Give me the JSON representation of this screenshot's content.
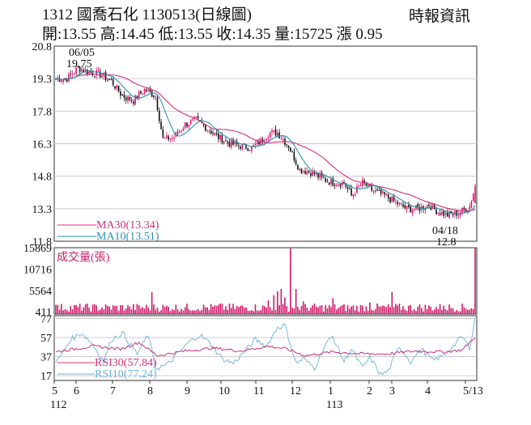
{
  "header": {
    "title": "1312  國喬石化 1130513(日線圖)",
    "source": "時報資訊",
    "ohlc": "開:13.55 高:14.45 低:13.55 收:14.35 量:15725 漲 0.95"
  },
  "colors": {
    "up": "#e0106a",
    "down": "#111111",
    "ma30": "#d0307a",
    "ma10": "#2a8fb0",
    "rsi30": "#d0307a",
    "rsi10": "#6fb0d8",
    "volume": "#d01a6a",
    "grid": "#cccccc"
  },
  "chart_data": [
    {
      "type": "candlestick",
      "name": "price",
      "y_ticks": [
        "20.8",
        "19.3",
        "17.8",
        "16.3",
        "14.8",
        "13.3",
        "11.8"
      ],
      "ylim": [
        11.8,
        20.8
      ],
      "annotations": [
        {
          "text": "06/05",
          "subtext": "19.75",
          "value": 19.75
        },
        {
          "text": "04/18",
          "subtext": "12.8",
          "value": 12.8
        }
      ],
      "legend": [
        {
          "label": "MA30(13.34)",
          "color": "#d0307a"
        },
        {
          "label": "MA10(13.51)",
          "color": "#2a8fb0"
        }
      ],
      "anchors": [
        [
          0,
          19.3
        ],
        [
          6,
          19.3
        ],
        [
          12,
          19.8
        ],
        [
          18,
          19.6
        ],
        [
          24,
          19.5
        ],
        [
          30,
          19.2
        ],
        [
          36,
          18.5
        ],
        [
          42,
          18.3
        ],
        [
          48,
          18.8
        ],
        [
          54,
          18.5
        ],
        [
          58,
          16.5
        ],
        [
          64,
          16.6
        ],
        [
          70,
          17.2
        ],
        [
          76,
          17.4
        ],
        [
          82,
          17.0
        ],
        [
          88,
          16.6
        ],
        [
          94,
          16.3
        ],
        [
          100,
          16.2
        ],
        [
          106,
          16.1
        ],
        [
          112,
          16.5
        ],
        [
          116,
          16.8
        ],
        [
          120,
          16.8
        ],
        [
          126,
          16.2
        ],
        [
          132,
          15.1
        ],
        [
          138,
          15.0
        ],
        [
          144,
          14.7
        ],
        [
          150,
          14.5
        ],
        [
          156,
          14.5
        ],
        [
          160,
          13.9
        ],
        [
          166,
          14.5
        ],
        [
          172,
          14.1
        ],
        [
          178,
          13.9
        ],
        [
          184,
          13.6
        ],
        [
          190,
          13.3
        ],
        [
          196,
          13.3
        ],
        [
          202,
          13.5
        ],
        [
          206,
          13.2
        ],
        [
          212,
          13.0
        ],
        [
          218,
          13.1
        ],
        [
          224,
          13.4
        ],
        [
          227,
          14.35
        ]
      ]
    },
    {
      "type": "bar",
      "name": "volume",
      "title": "成交量(張)",
      "y_ticks": [
        "15869",
        "10716",
        "5564",
        "411"
      ],
      "ylim": [
        0,
        15869
      ],
      "spikes": [
        [
          0,
          2200
        ],
        [
          40,
          1800
        ],
        [
          52,
          5200
        ],
        [
          90,
          2500
        ],
        [
          115,
          3300
        ],
        [
          118,
          4500
        ],
        [
          120,
          5500
        ],
        [
          122,
          6000
        ],
        [
          124,
          4000
        ],
        [
          127,
          15725
        ],
        [
          130,
          6000
        ],
        [
          134,
          3000
        ],
        [
          150,
          3800
        ],
        [
          170,
          2800
        ],
        [
          182,
          5300
        ],
        [
          210,
          2000
        ],
        [
          227,
          15725
        ]
      ],
      "base": 1500
    },
    {
      "type": "line",
      "name": "rsi",
      "y_ticks": [
        "77",
        "57",
        "37",
        "17"
      ],
      "ylim": [
        12,
        80
      ],
      "legend": [
        {
          "label": "RSI30(57.84)",
          "color": "#d0307a"
        },
        {
          "label": "RSI10(77.24)",
          "color": "#6fb0d8"
        }
      ],
      "rsi30_anchors": [
        [
          0,
          42
        ],
        [
          20,
          48
        ],
        [
          35,
          45
        ],
        [
          45,
          52
        ],
        [
          55,
          38
        ],
        [
          70,
          43
        ],
        [
          85,
          46
        ],
        [
          100,
          43
        ],
        [
          115,
          48
        ],
        [
          125,
          45
        ],
        [
          135,
          38
        ],
        [
          150,
          42
        ],
        [
          165,
          40
        ],
        [
          180,
          40
        ],
        [
          195,
          43
        ],
        [
          210,
          42
        ],
        [
          220,
          44
        ],
        [
          227,
          57.84
        ]
      ],
      "rsi10_anchors": [
        [
          0,
          30
        ],
        [
          8,
          55
        ],
        [
          14,
          62
        ],
        [
          20,
          50
        ],
        [
          26,
          32
        ],
        [
          30,
          55
        ],
        [
          36,
          62
        ],
        [
          44,
          40
        ],
        [
          50,
          60
        ],
        [
          54,
          25
        ],
        [
          60,
          28
        ],
        [
          66,
          40
        ],
        [
          72,
          52
        ],
        [
          78,
          60
        ],
        [
          84,
          50
        ],
        [
          90,
          35
        ],
        [
          96,
          30
        ],
        [
          102,
          42
        ],
        [
          108,
          55
        ],
        [
          114,
          48
        ],
        [
          120,
          68
        ],
        [
          124,
          70
        ],
        [
          130,
          30
        ],
        [
          134,
          35
        ],
        [
          140,
          25
        ],
        [
          146,
          50
        ],
        [
          150,
          58
        ],
        [
          156,
          32
        ],
        [
          160,
          45
        ],
        [
          166,
          25
        ],
        [
          170,
          36
        ],
        [
          176,
          18
        ],
        [
          180,
          22
        ],
        [
          186,
          48
        ],
        [
          192,
          32
        ],
        [
          198,
          45
        ],
        [
          204,
          33
        ],
        [
          210,
          38
        ],
        [
          216,
          50
        ],
        [
          220,
          58
        ],
        [
          224,
          46
        ],
        [
          227,
          77.24
        ]
      ]
    }
  ],
  "x_axis": {
    "month_labels": [
      "5",
      "6",
      "7",
      "8",
      "9",
      "10",
      "11",
      "12",
      "1",
      "2",
      "3",
      "4",
      "5/13"
    ],
    "year_labels": [
      "112",
      "113"
    ]
  }
}
